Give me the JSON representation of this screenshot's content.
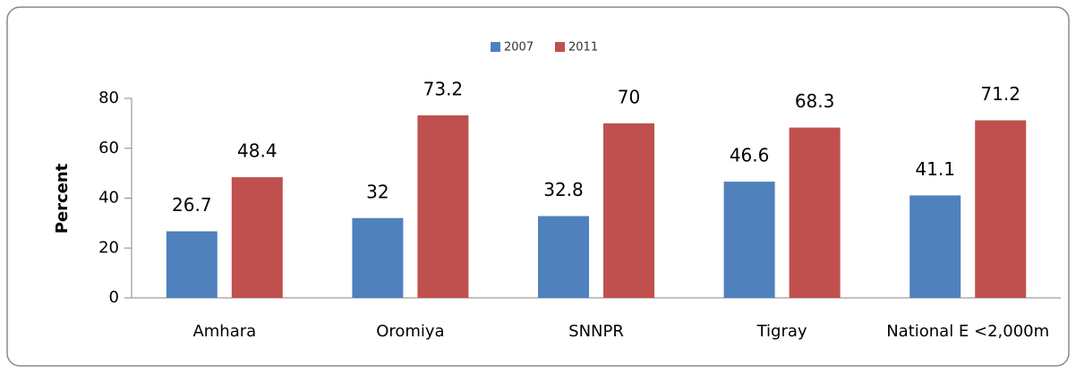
{
  "chart_data": {
    "type": "bar",
    "y_label": "Percent",
    "categories": [
      "Amhara",
      "Oromiya",
      "SNNPR",
      "Tigray",
      "National E <2,000m"
    ],
    "series": [
      {
        "name": "2007",
        "color": "#4f81bd",
        "values": [
          26.7,
          32,
          32.8,
          46.6,
          41.1
        ]
      },
      {
        "name": "2011",
        "color": "#c0504d",
        "values": [
          48.4,
          73.2,
          70,
          68.3,
          71.2
        ]
      }
    ],
    "ylim": [
      0,
      80
    ],
    "yticks": [
      0,
      20,
      40,
      60,
      80
    ],
    "legend": "top"
  }
}
